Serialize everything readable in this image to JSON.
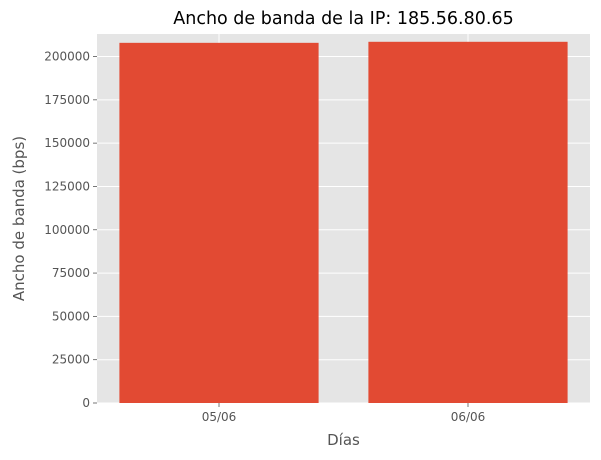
{
  "chart_data": {
    "type": "bar",
    "title": "Ancho de banda de la IP: 185.56.80.65",
    "xlabel": "Días",
    "ylabel": "Ancho de banda (bps)",
    "categories": [
      "05/06",
      "06/06"
    ],
    "values": [
      207900,
      208500
    ],
    "ylim": [
      0,
      213000
    ],
    "yticks": [
      0,
      25000,
      50000,
      75000,
      100000,
      125000,
      150000,
      175000,
      200000
    ],
    "grid": true,
    "legend": "none",
    "colors": {
      "bar": "#E24A33",
      "plot_background": "#E5E5E5",
      "grid": "#FFFFFF",
      "tick_text": "#555555",
      "title_text": "#000000"
    }
  }
}
